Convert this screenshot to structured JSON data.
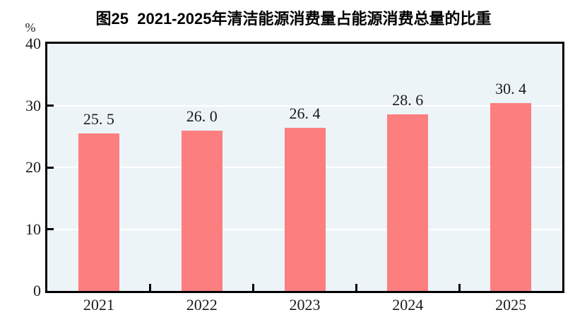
{
  "title": "图25  2021-2025年清洁能源消费量占能源消费总量的比重",
  "y_axis": {
    "unit_label": "%",
    "tick_labels": [
      "0",
      "10",
      "20",
      "30",
      "40"
    ]
  },
  "chart_data": {
    "type": "bar",
    "title": "图25  2021-2025年清洁能源消费量占能源消费总量的比重",
    "categories": [
      "2021",
      "2022",
      "2023",
      "2024",
      "2025"
    ],
    "values": [
      25.5,
      26.0,
      26.4,
      28.6,
      30.4
    ],
    "bar_labels": [
      "25. 5",
      "26. 0",
      "26. 4",
      "28. 6",
      "30. 4"
    ],
    "xlabel": "",
    "ylabel": "%",
    "ylim": [
      0,
      40
    ],
    "y_ticks": [
      0,
      10,
      20,
      30,
      40
    ],
    "grid": true,
    "legend_position": "none",
    "colors": {
      "bar": "#FC7E7E",
      "plot_background": "#EDF4F8",
      "gridline": "#FFFFFF",
      "axis": "#000000",
      "text": "#1A1A1A"
    }
  }
}
